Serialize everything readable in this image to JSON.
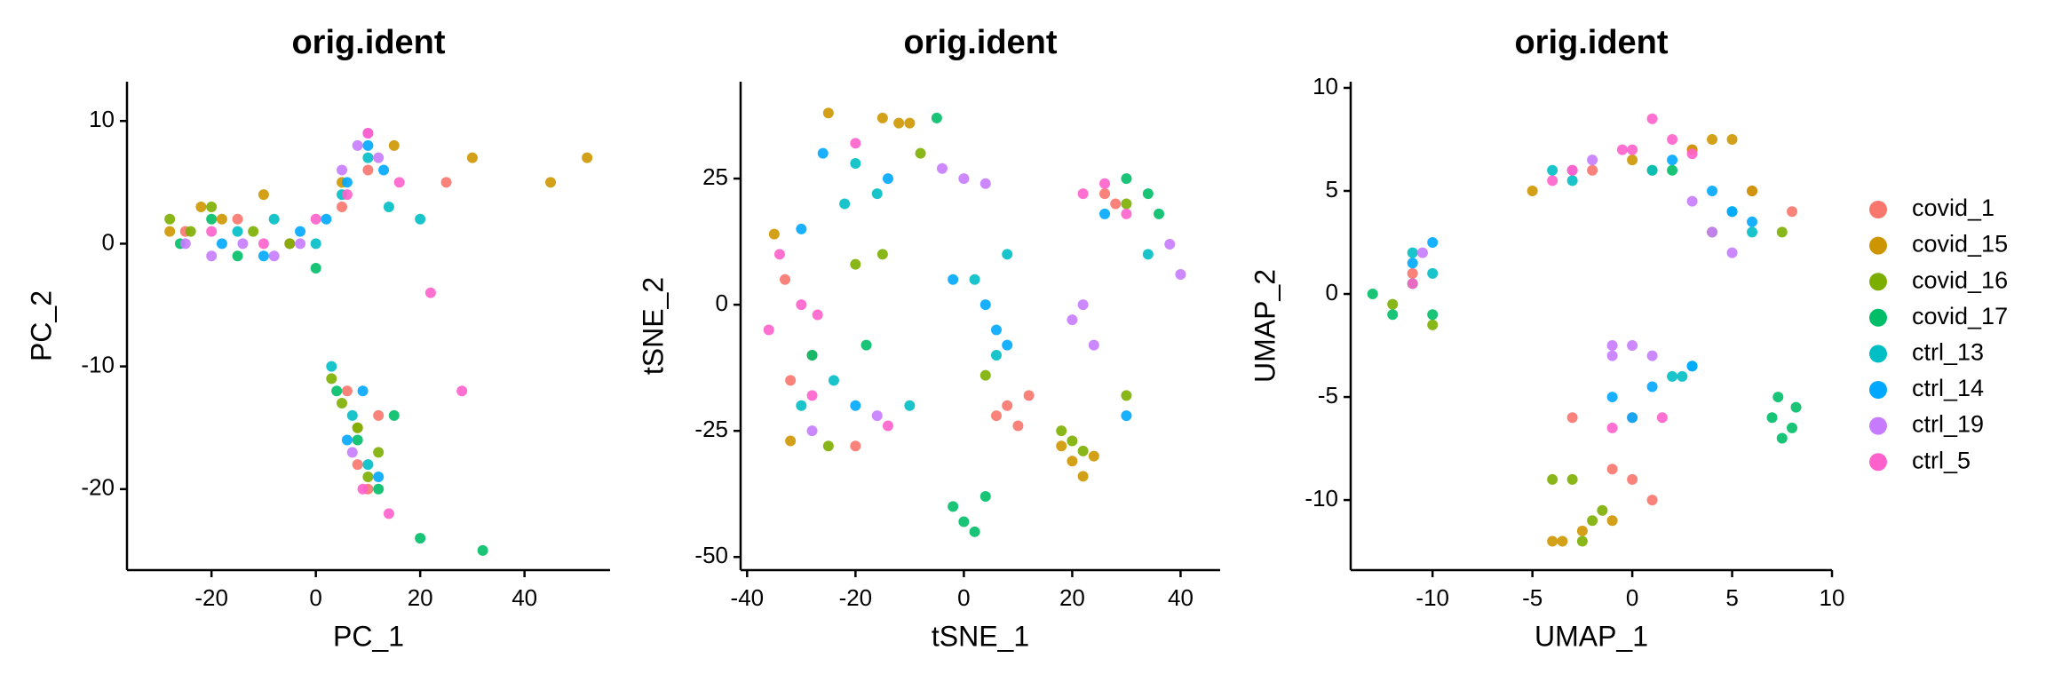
{
  "chart_data": [
    {
      "type": "scatter",
      "title": "orig.ident",
      "x_label": "PC_1",
      "y_label": "PC_2",
      "xlim": [
        -36.2,
        56.4
      ],
      "ylim": [
        -26.6,
        13.2
      ],
      "xticks": [
        -20,
        0,
        20,
        40
      ],
      "yticks": [
        -20,
        -10,
        0,
        10
      ],
      "series": [
        {
          "name": "covid_1",
          "color": "#F8766D",
          "x": [
            -25,
            -15,
            -5,
            5,
            10,
            12,
            8,
            25,
            6,
            10
          ],
          "y": [
            1,
            2,
            0,
            3,
            6,
            -14,
            -18,
            5,
            -12,
            -20
          ]
        },
        {
          "name": "covid_15",
          "color": "#CD9600",
          "x": [
            -22,
            -18,
            -10,
            5,
            15,
            30,
            45,
            52,
            8,
            -28
          ],
          "y": [
            3,
            2,
            4,
            5,
            8,
            7,
            5,
            7,
            -15,
            1
          ]
        },
        {
          "name": "covid_16",
          "color": "#7CAE00",
          "x": [
            -28,
            -24,
            -20,
            -12,
            -5,
            3,
            8,
            10,
            5,
            12
          ],
          "y": [
            2,
            1,
            3,
            1,
            0,
            -11,
            -15,
            -19,
            -13,
            -17
          ]
        },
        {
          "name": "covid_17",
          "color": "#00BE67",
          "x": [
            -26,
            -20,
            -15,
            0,
            4,
            8,
            12,
            15,
            20,
            32
          ],
          "y": [
            0,
            2,
            -1,
            -2,
            -12,
            -16,
            -20,
            -14,
            -24,
            -25
          ]
        },
        {
          "name": "ctrl_13",
          "color": "#00BFC4",
          "x": [
            -15,
            -8,
            0,
            5,
            10,
            14,
            7,
            10,
            20,
            3
          ],
          "y": [
            1,
            2,
            0,
            4,
            7,
            3,
            -14,
            -18,
            2,
            -10
          ]
        },
        {
          "name": "ctrl_14",
          "color": "#00A9FF",
          "x": [
            -18,
            -10,
            -3,
            2,
            6,
            10,
            13,
            6,
            9,
            12
          ],
          "y": [
            0,
            -1,
            1,
            2,
            5,
            8,
            6,
            -16,
            -12,
            -19
          ]
        },
        {
          "name": "ctrl_19",
          "color": "#C77CFF",
          "x": [
            -25,
            -20,
            -14,
            -8,
            -3,
            5,
            8,
            10,
            12,
            7
          ],
          "y": [
            0,
            -1,
            0,
            -1,
            0,
            6,
            8,
            9,
            7,
            -17
          ]
        },
        {
          "name": "ctrl_5",
          "color": "#FF61CC",
          "x": [
            -20,
            -10,
            0,
            6,
            10,
            16,
            22,
            28,
            9,
            14
          ],
          "y": [
            1,
            0,
            2,
            4,
            9,
            5,
            -4,
            -12,
            -20,
            -22
          ]
        }
      ]
    },
    {
      "type": "scatter",
      "title": "orig.ident",
      "x_label": "tSNE_1",
      "y_label": "tSNE_2",
      "xlim": [
        -41.2,
        47.3
      ],
      "ylim": [
        -52.6,
        44.2
      ],
      "xticks": [
        -40,
        -20,
        0,
        20,
        40
      ],
      "yticks": [
        -50,
        -25,
        0,
        25
      ],
      "series": [
        {
          "name": "covid_1",
          "color": "#F8766D",
          "x": [
            -33,
            -28,
            8,
            10,
            6,
            12,
            26,
            28,
            -20,
            -32
          ],
          "y": [
            5,
            -10,
            -20,
            -24,
            -22,
            -18,
            22,
            20,
            -28,
            -15
          ]
        },
        {
          "name": "covid_15",
          "color": "#CD9600",
          "x": [
            -35,
            -25,
            -15,
            -12,
            18,
            20,
            22,
            24,
            -32,
            -10
          ],
          "y": [
            14,
            38,
            37,
            36,
            -28,
            -31,
            -34,
            -30,
            -27,
            36
          ]
        },
        {
          "name": "covid_16",
          "color": "#7CAE00",
          "x": [
            -20,
            -8,
            18,
            20,
            22,
            30,
            -25,
            4,
            -15,
            30
          ],
          "y": [
            8,
            30,
            -25,
            -27,
            -29,
            20,
            -28,
            -14,
            10,
            -18
          ]
        },
        {
          "name": "covid_17",
          "color": "#00BE67",
          "x": [
            -5,
            -2,
            0,
            2,
            4,
            30,
            34,
            36,
            -28,
            -18
          ],
          "y": [
            37,
            -40,
            -43,
            -45,
            -38,
            25,
            22,
            18,
            -10,
            -8
          ]
        },
        {
          "name": "ctrl_13",
          "color": "#00BFC4",
          "x": [
            -20,
            -16,
            -24,
            -30,
            2,
            8,
            6,
            34,
            -10,
            -22
          ],
          "y": [
            28,
            22,
            -15,
            -20,
            5,
            10,
            -10,
            10,
            -20,
            20
          ]
        },
        {
          "name": "ctrl_14",
          "color": "#00A9FF",
          "x": [
            -26,
            -14,
            -30,
            -2,
            4,
            6,
            8,
            -20,
            26,
            30
          ],
          "y": [
            30,
            25,
            15,
            5,
            0,
            -5,
            -8,
            -20,
            18,
            -22
          ]
        },
        {
          "name": "ctrl_19",
          "color": "#C77CFF",
          "x": [
            -4,
            0,
            4,
            20,
            22,
            24,
            38,
            40,
            -28,
            -16
          ],
          "y": [
            27,
            25,
            24,
            -3,
            0,
            -8,
            12,
            6,
            -25,
            -22
          ]
        },
        {
          "name": "ctrl_5",
          "color": "#FF61CC",
          "x": [
            -34,
            -30,
            -36,
            -27,
            22,
            26,
            -20,
            -14,
            30,
            -28
          ],
          "y": [
            10,
            0,
            -5,
            -2,
            22,
            24,
            32,
            -24,
            18,
            -18
          ]
        }
      ]
    },
    {
      "type": "scatter",
      "title": "orig.ident",
      "x_label": "UMAP_1",
      "y_label": "UMAP_2",
      "legend": "right",
      "xlim": [
        -14.1,
        10
      ],
      "ylim": [
        -13.4,
        10.3
      ],
      "xticks": [
        -10,
        -5,
        0,
        5,
        10
      ],
      "yticks": [
        -10,
        -5,
        0,
        5,
        10
      ],
      "series": [
        {
          "name": "covid_1",
          "color": "#F8766D",
          "x": [
            -2,
            0,
            1,
            -1,
            3,
            6,
            -11,
            -3,
            0,
            8
          ],
          "y": [
            6,
            -9,
            -10,
            -8.5,
            7,
            5,
            1,
            -6,
            -6,
            4
          ]
        },
        {
          "name": "covid_15",
          "color": "#CD9600",
          "x": [
            -3.5,
            -2.5,
            -1,
            0,
            3,
            4,
            5,
            -4,
            -5,
            6
          ],
          "y": [
            -12,
            -11.5,
            -11,
            6.5,
            7,
            7.5,
            7.5,
            -12,
            5,
            5
          ]
        },
        {
          "name": "covid_16",
          "color": "#7CAE00",
          "x": [
            -2,
            -1.5,
            -2.5,
            -3,
            -12,
            -10,
            1,
            4,
            -4,
            7.5
          ],
          "y": [
            -11,
            -10.5,
            -12,
            -9,
            -0.5,
            -1.5,
            6,
            3,
            -9,
            3
          ]
        },
        {
          "name": "covid_17",
          "color": "#00BE67",
          "x": [
            7,
            7.5,
            8,
            8.2,
            7.3,
            -13,
            -12,
            -11,
            -10,
            2
          ],
          "y": [
            -6,
            -7,
            -6.5,
            -5.5,
            -5,
            0,
            -1,
            0.5,
            -1,
            6
          ]
        },
        {
          "name": "ctrl_13",
          "color": "#00BFC4",
          "x": [
            -4,
            -3,
            1,
            2,
            3,
            5,
            6,
            -11,
            -10,
            2.5
          ],
          "y": [
            6,
            5.5,
            6,
            -4,
            -3.5,
            4,
            3,
            2,
            1,
            -4
          ]
        },
        {
          "name": "ctrl_14",
          "color": "#00A9FF",
          "x": [
            -1,
            0,
            1,
            -11,
            -10,
            2,
            4,
            5,
            3,
            6
          ],
          "y": [
            -5,
            -6,
            -4.5,
            1.5,
            2.5,
            6.5,
            5,
            4,
            -3.5,
            3.5
          ]
        },
        {
          "name": "ctrl_19",
          "color": "#C77CFF",
          "x": [
            -1,
            0,
            1,
            3,
            4,
            5,
            -3,
            -1,
            -10.5,
            -2
          ],
          "y": [
            -3,
            -2.5,
            -3,
            4.5,
            3,
            2,
            6,
            -2.5,
            2,
            6.5
          ]
        },
        {
          "name": "ctrl_5",
          "color": "#FF61CC",
          "x": [
            0,
            2,
            3,
            -3,
            -1,
            -11,
            1,
            -4,
            1.5,
            -0.5
          ],
          "y": [
            7,
            7.5,
            6.8,
            6,
            -6.5,
            0.5,
            8.5,
            5.5,
            -6,
            7
          ]
        }
      ]
    }
  ]
}
